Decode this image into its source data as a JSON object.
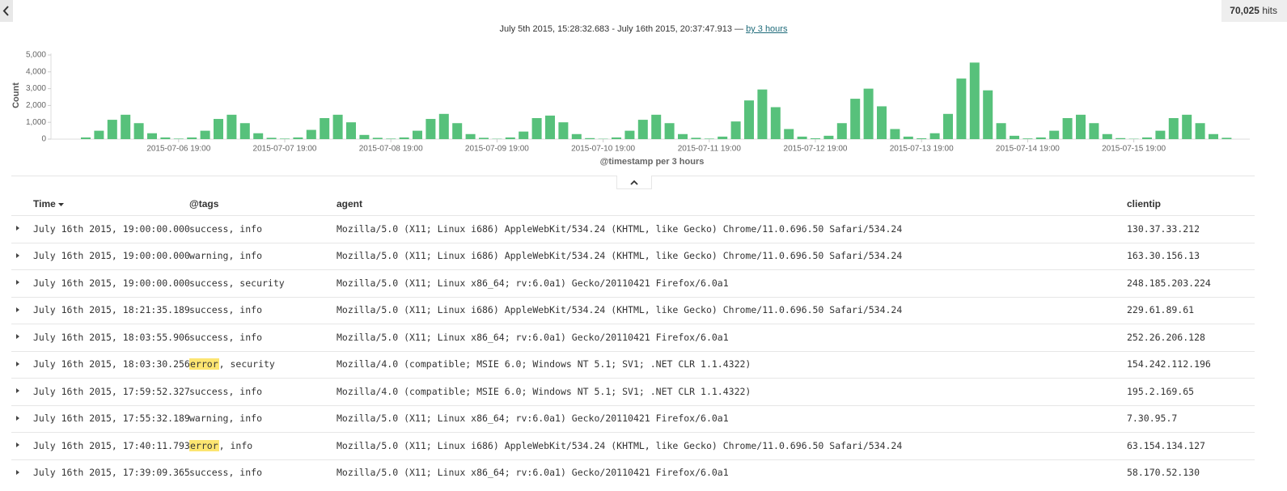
{
  "header": {
    "hits_count": "70,025",
    "hits_label": "hits",
    "time_range": "July 5th 2015, 15:28:32.683 - July 16th 2015, 20:37:47.913 —",
    "interval_link": "by 3 hours"
  },
  "chart_data": {
    "type": "bar",
    "y_label": "Count",
    "x_label": "@timestamp per 3 hours",
    "color": "#57c17b",
    "categories": [
      null,
      null,
      null,
      null,
      null,
      null,
      null,
      "2015-07-06 19:00",
      null,
      null,
      null,
      null,
      null,
      null,
      null,
      "2015-07-07 19:00",
      null,
      null,
      null,
      null,
      null,
      null,
      null,
      "2015-07-08 19:00",
      null,
      null,
      null,
      null,
      null,
      null,
      null,
      "2015-07-09 19:00",
      null,
      null,
      null,
      null,
      null,
      null,
      null,
      "2015-07-10 19:00",
      null,
      null,
      null,
      null,
      null,
      null,
      null,
      "2015-07-11 19:00",
      null,
      null,
      null,
      null,
      null,
      null,
      null,
      "2015-07-12 19:00",
      null,
      null,
      null,
      null,
      null,
      null,
      null,
      "2015-07-13 19:00",
      null,
      null,
      null,
      null,
      null,
      null,
      null,
      "2015-07-14 19:00",
      null,
      null,
      null,
      null,
      null,
      null,
      null,
      "2015-07-15 19:00",
      null,
      null,
      null,
      null,
      null,
      null,
      null
    ],
    "values": [
      100,
      500,
      1150,
      1450,
      950,
      350,
      100,
      30,
      100,
      500,
      1200,
      1450,
      950,
      350,
      80,
      30,
      100,
      550,
      1250,
      1450,
      1000,
      250,
      80,
      30,
      100,
      500,
      1200,
      1500,
      950,
      300,
      80,
      20,
      100,
      450,
      1250,
      1400,
      1000,
      300,
      60,
      20,
      100,
      500,
      1150,
      1450,
      950,
      300,
      80,
      30,
      150,
      1050,
      2300,
      2950,
      1900,
      600,
      150,
      50,
      200,
      950,
      2400,
      3000,
      1950,
      600,
      150,
      50,
      350,
      1500,
      3600,
      4550,
      2900,
      950,
      200,
      40,
      100,
      500,
      1250,
      1450,
      950,
      300,
      60,
      20,
      100,
      500,
      1250,
      1450,
      950,
      300,
      80
    ],
    "ylim": [
      0,
      5000
    ],
    "yticks": [
      0,
      {
        "value": 1000,
        "label": "1,000"
      },
      {
        "value": 2000,
        "label": "2,000"
      },
      {
        "value": 3000,
        "label": "3,000"
      },
      {
        "value": 4000,
        "label": "4,000"
      },
      {
        "value": 5000,
        "label": "5,000"
      }
    ],
    "grid": false
  },
  "table": {
    "columns": [
      "Time",
      "@tags",
      "agent",
      "clientip"
    ],
    "rows": [
      [
        "July 16th 2015, 19:00:00.000",
        [
          "success, info"
        ],
        "Mozilla/5.0 (X11; Linux i686) AppleWebKit/534.24 (KHTML, like Gecko) Chrome/11.0.696.50 Safari/534.24",
        "130.37.33.212"
      ],
      [
        "July 16th 2015, 19:00:00.000",
        [
          "warning, info"
        ],
        "Mozilla/5.0 (X11; Linux i686) AppleWebKit/534.24 (KHTML, like Gecko) Chrome/11.0.696.50 Safari/534.24",
        "163.30.156.13"
      ],
      [
        "July 16th 2015, 19:00:00.000",
        [
          "success, security"
        ],
        "Mozilla/5.0 (X11; Linux x86_64; rv:6.0a1) Gecko/20110421 Firefox/6.0a1",
        "248.185.203.224"
      ],
      [
        "July 16th 2015, 18:21:35.189",
        [
          "success, info"
        ],
        "Mozilla/5.0 (X11; Linux i686) AppleWebKit/534.24 (KHTML, like Gecko) Chrome/11.0.696.50 Safari/534.24",
        "229.61.89.61"
      ],
      [
        "July 16th 2015, 18:03:55.906",
        [
          "success, info"
        ],
        "Mozilla/5.0 (X11; Linux x86_64; rv:6.0a1) Gecko/20110421 Firefox/6.0a1",
        "252.26.206.128"
      ],
      [
        "July 16th 2015, 18:03:30.256",
        [
          {
            "text": "error",
            "highlight": true
          },
          ", security"
        ],
        "Mozilla/4.0 (compatible; MSIE 6.0; Windows NT 5.1; SV1; .NET CLR 1.1.4322)",
        "154.242.112.196"
      ],
      [
        "July 16th 2015, 17:59:52.327",
        [
          "success, info"
        ],
        "Mozilla/4.0 (compatible; MSIE 6.0; Windows NT 5.1; SV1; .NET CLR 1.1.4322)",
        "195.2.169.65"
      ],
      [
        "July 16th 2015, 17:55:32.189",
        [
          "warning, info"
        ],
        "Mozilla/5.0 (X11; Linux x86_64; rv:6.0a1) Gecko/20110421 Firefox/6.0a1",
        "7.30.95.7"
      ],
      [
        "July 16th 2015, 17:40:11.793",
        [
          {
            "text": "error",
            "highlight": true
          },
          ", info"
        ],
        "Mozilla/5.0 (X11; Linux i686) AppleWebKit/534.24 (KHTML, like Gecko) Chrome/11.0.696.50 Safari/534.24",
        "63.154.134.127"
      ],
      [
        "July 16th 2015, 17:39:09.365",
        [
          "success, info"
        ],
        "Mozilla/5.0 (X11; Linux x86_64; rv:6.0a1) Gecko/20110421 Firefox/6.0a1",
        "58.170.52.130"
      ]
    ]
  }
}
